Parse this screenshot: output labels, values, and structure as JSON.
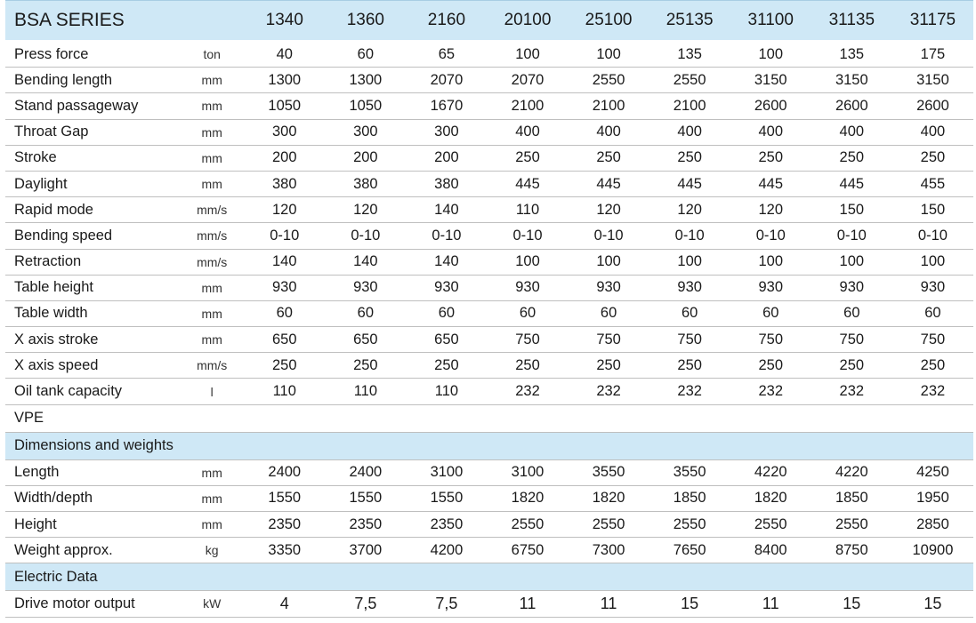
{
  "header": {
    "title": "BSA SERIES",
    "models": [
      "1340",
      "1360",
      "2160",
      "20100",
      "25100",
      "25135",
      "31100",
      "31135",
      "31175"
    ]
  },
  "specs": [
    {
      "name": "Press force",
      "unit": "ton",
      "values": [
        "40",
        "60",
        "65",
        "100",
        "100",
        "135",
        "100",
        "135",
        "175"
      ]
    },
    {
      "name": "Bending length",
      "unit": "mm",
      "values": [
        "1300",
        "1300",
        "2070",
        "2070",
        "2550",
        "2550",
        "3150",
        "3150",
        "3150"
      ]
    },
    {
      "name": "Stand passageway",
      "unit": "mm",
      "values": [
        "1050",
        "1050",
        "1670",
        "2100",
        "2100",
        "2100",
        "2600",
        "2600",
        "2600"
      ]
    },
    {
      "name": "Throat Gap",
      "unit": "mm",
      "values": [
        "300",
        "300",
        "300",
        "400",
        "400",
        "400",
        "400",
        "400",
        "400"
      ]
    },
    {
      "name": "Stroke",
      "unit": "mm",
      "values": [
        "200",
        "200",
        "200",
        "250",
        "250",
        "250",
        "250",
        "250",
        "250"
      ]
    },
    {
      "name": "Daylight",
      "unit": "mm",
      "values": [
        "380",
        "380",
        "380",
        "445",
        "445",
        "445",
        "445",
        "445",
        "455"
      ]
    },
    {
      "name": "Rapid mode",
      "unit": "mm/s",
      "values": [
        "120",
        "120",
        "140",
        "110",
        "120",
        "120",
        "120",
        "150",
        "150"
      ]
    },
    {
      "name": "Bending speed",
      "unit": "mm/s",
      "values": [
        "0-10",
        "0-10",
        "0-10",
        "0-10",
        "0-10",
        "0-10",
        "0-10",
        "0-10",
        "0-10"
      ]
    },
    {
      "name": "Retraction",
      "unit": "mm/s",
      "values": [
        "140",
        "140",
        "140",
        "100",
        "100",
        "100",
        "100",
        "100",
        "100"
      ]
    },
    {
      "name": "Table height",
      "unit": "mm",
      "values": [
        "930",
        "930",
        "930",
        "930",
        "930",
        "930",
        "930",
        "930",
        "930"
      ]
    },
    {
      "name": "Table width",
      "unit": "mm",
      "values": [
        "60",
        "60",
        "60",
        "60",
        "60",
        "60",
        "60",
        "60",
        "60"
      ]
    },
    {
      "name": "X axis stroke",
      "unit": "mm",
      "values": [
        "650",
        "650",
        "650",
        "750",
        "750",
        "750",
        "750",
        "750",
        "750"
      ]
    },
    {
      "name": "X axis speed",
      "unit": "mm/s",
      "values": [
        "250",
        "250",
        "250",
        "250",
        "250",
        "250",
        "250",
        "250",
        "250"
      ]
    },
    {
      "name": "Oil tank capacity",
      "unit": "l",
      "values": [
        "110",
        "110",
        "110",
        "232",
        "232",
        "232",
        "232",
        "232",
        "232"
      ]
    }
  ],
  "vpe_label": "VPE",
  "dimensions": {
    "title": "Dimensions and weights",
    "rows": [
      {
        "name": "Length",
        "unit": "mm",
        "values": [
          "2400",
          "2400",
          "3100",
          "3100",
          "3550",
          "3550",
          "4220",
          "4220",
          "4250"
        ]
      },
      {
        "name": "Width/depth",
        "unit": "mm",
        "values": [
          "1550",
          "1550",
          "1550",
          "1820",
          "1820",
          "1850",
          "1820",
          "1850",
          "1950"
        ]
      },
      {
        "name": "Height",
        "unit": "mm",
        "values": [
          "2350",
          "2350",
          "2350",
          "2550",
          "2550",
          "2550",
          "2550",
          "2550",
          "2850"
        ]
      },
      {
        "name": "Weight approx.",
        "unit": "kg",
        "values": [
          "3350",
          "3700",
          "4200",
          "6750",
          "7300",
          "7650",
          "8400",
          "8750",
          "10900"
        ]
      }
    ]
  },
  "electric": {
    "title": "Electric Data",
    "rows": [
      {
        "name": "Drive motor output",
        "unit": "kW",
        "values": [
          "4",
          "7,5",
          "7,5",
          "11",
          "11",
          "15",
          "11",
          "15",
          "15"
        ]
      }
    ]
  }
}
